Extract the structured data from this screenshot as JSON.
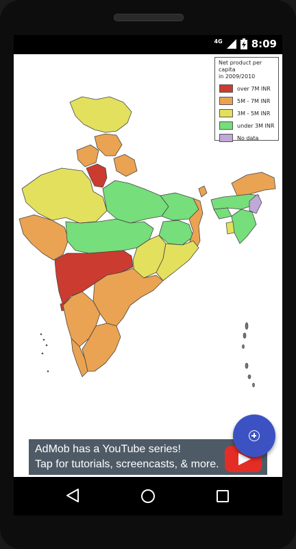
{
  "status": {
    "network": "4G",
    "time": "8:09"
  },
  "legend": {
    "title_line1": "Net product per capita",
    "title_line2": "in 2009/2010",
    "items": [
      {
        "label": "over 7M INR",
        "color": "#cc3b2f"
      },
      {
        "label": "5M - 7M INR",
        "color": "#eaa352"
      },
      {
        "label": "3M - 5M INR",
        "color": "#e3e05e"
      },
      {
        "label": "under 3M INR",
        "color": "#76de7a"
      },
      {
        "label": "No data",
        "color": "#c0a8d8"
      }
    ]
  },
  "map": {
    "name": "India states map"
  },
  "ad": {
    "line1": "AdMob has a YouTube series!",
    "line2": "Tap for tutorials, screencasts, & more.",
    "icon": "youtube-play-icon"
  },
  "fab": {
    "icon": "zoom-in-icon"
  },
  "nav": {
    "back": "back-icon",
    "home": "home-icon",
    "recent": "recent-apps-icon"
  }
}
